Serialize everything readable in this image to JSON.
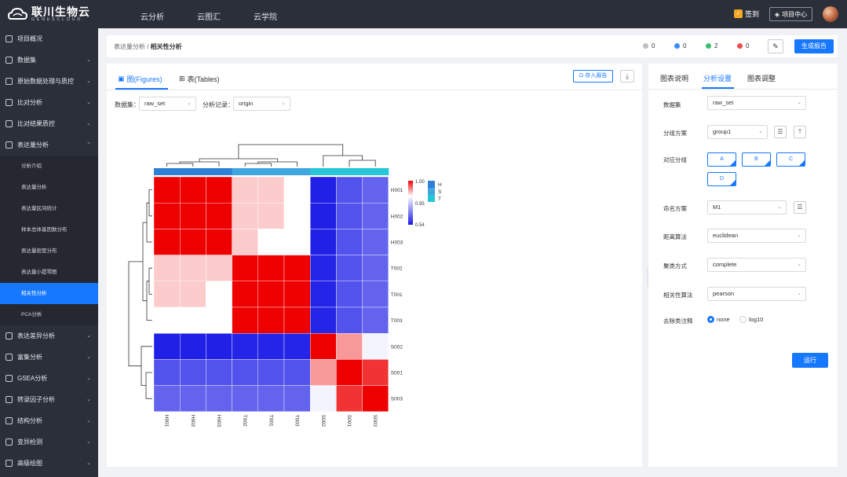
{
  "header": {
    "logo_text": "联川生物云",
    "logo_sub": "GENESCLOUD",
    "nav": [
      "云分析",
      "云图汇",
      "云学院"
    ],
    "sign_label": "签到",
    "project_center_label": "项目中心"
  },
  "sidebar": {
    "items": [
      {
        "label": "项目概况",
        "icon": "grid-icon"
      },
      {
        "label": "数据集",
        "icon": "dataset-icon"
      },
      {
        "label": "原始数据处理与质控",
        "icon": "filter-icon"
      },
      {
        "label": "比对分析",
        "icon": "list-icon"
      },
      {
        "label": "比对结果质控",
        "icon": "check-list-icon"
      },
      {
        "label": "表达量分析",
        "icon": "triangle-icon"
      }
    ],
    "subitems": [
      "分析介绍",
      "表达量分析",
      "表达量区间统计",
      "样本总体基因数分布",
      "表达量密度分布",
      "表达量小提琴图",
      "相关性分析",
      "PCA分析"
    ],
    "items_after": [
      {
        "label": "表达差异分析",
        "icon": "diff-icon"
      },
      {
        "label": "富集分析",
        "icon": "enrich-icon"
      },
      {
        "label": "GSEA分析",
        "icon": "gsea-icon"
      },
      {
        "label": "转录因子分析",
        "icon": "tf-icon"
      },
      {
        "label": "结构分析",
        "icon": "structure-icon"
      },
      {
        "label": "变异检测",
        "icon": "variant-icon"
      },
      {
        "label": "高级绘图",
        "icon": "paint-icon"
      }
    ]
  },
  "breadcrumb": {
    "parent": "表达量分析",
    "separator": " / ",
    "current": "相关性分析"
  },
  "status": {
    "gray": "0",
    "blue": "0",
    "green": "2",
    "red": "0"
  },
  "colors": {
    "accent": "#1677ff",
    "sidebar": "#2b2f3a",
    "heat_high": "#ee0000",
    "heat_mid": "#ffffff",
    "heat_low": "#1a1ae6",
    "group_H": "#2f7fd6",
    "group_S": "#3fa6e0",
    "group_T": "#25c6d8"
  },
  "generate_report": "生成报告",
  "left": {
    "tab_figures": "图(Figures)",
    "tab_tables": "表(Tables)",
    "save_report": "存入报告",
    "dataset_label": "数据集：",
    "dataset_value": "raw_set",
    "record_label": "分析记录：",
    "record_value": "origin"
  },
  "right": {
    "tabs": [
      "图表说明",
      "分析设置",
      "图表调整"
    ],
    "dataset_label": "数据集",
    "dataset_value": "raw_set",
    "group_scheme_label": "分组方案",
    "group_scheme_value": "group1",
    "groups_label": "对应分组",
    "groups": [
      "A",
      "B",
      "C",
      "D"
    ],
    "naming_label": "命名方案",
    "naming_value": "M1",
    "distance_label": "距离算法",
    "distance_value": "euclidean",
    "cluster_label": "聚类方式",
    "cluster_value": "complete",
    "corr_label": "相关性算法",
    "corr_value": "pearson",
    "transform_label": "去除类注释",
    "transform_options": [
      "none",
      "log10"
    ],
    "run_label": "运行"
  },
  "chart_data": {
    "type": "heatmap",
    "rows": [
      "H001",
      "H002",
      "H003",
      "T002",
      "T001",
      "T003",
      "S002",
      "S001",
      "S003"
    ],
    "cols": [
      "H001",
      "H002",
      "H003",
      "T002",
      "T001",
      "T003",
      "S002",
      "S001",
      "S003"
    ],
    "col_groups": [
      "H",
      "H",
      "H",
      "S",
      "S",
      "S",
      "T",
      "T",
      "T"
    ],
    "values": [
      [
        1.0,
        1.0,
        1.0,
        0.96,
        0.96,
        0.95,
        0.55,
        0.64,
        0.67
      ],
      [
        1.0,
        1.0,
        1.0,
        0.96,
        0.96,
        0.95,
        0.55,
        0.64,
        0.67
      ],
      [
        1.0,
        1.0,
        1.0,
        0.96,
        0.95,
        0.95,
        0.55,
        0.64,
        0.67
      ],
      [
        0.96,
        0.96,
        0.96,
        1.0,
        1.0,
        1.0,
        0.56,
        0.64,
        0.67
      ],
      [
        0.96,
        0.96,
        0.95,
        1.0,
        1.0,
        1.0,
        0.56,
        0.64,
        0.67
      ],
      [
        0.95,
        0.95,
        0.95,
        1.0,
        1.0,
        1.0,
        0.56,
        0.64,
        0.67
      ],
      [
        0.55,
        0.55,
        0.55,
        0.56,
        0.56,
        0.56,
        1.0,
        0.97,
        0.93
      ],
      [
        0.64,
        0.64,
        0.64,
        0.64,
        0.64,
        0.64,
        0.97,
        1.0,
        0.99
      ],
      [
        0.67,
        0.67,
        0.67,
        0.67,
        0.67,
        0.67,
        0.93,
        0.99,
        1.0
      ]
    ],
    "scale": {
      "max": 1.0,
      "mid": 0.95,
      "min": 0.54
    },
    "scale_labels": [
      "1.00",
      "0.95",
      "0.54"
    ],
    "legend": [
      "H",
      "S",
      "T"
    ]
  }
}
